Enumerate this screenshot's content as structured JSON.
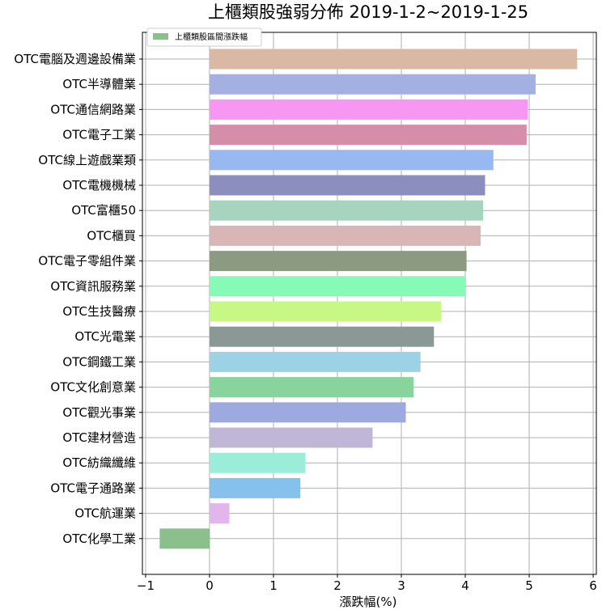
{
  "chart_data": {
    "type": "bar",
    "orientation": "horizontal",
    "title": "上櫃類股強弱分佈  2019-1-2~2019-1-25",
    "xlabel": "漲跌幅(%)",
    "ylabel": "",
    "xlim": [
      -1.05,
      6.05
    ],
    "xticks": [
      -1,
      0,
      1,
      2,
      3,
      4,
      5,
      6
    ],
    "xtick_labels": [
      "−1",
      "0",
      "1",
      "2",
      "3",
      "4",
      "5",
      "6"
    ],
    "grid": true,
    "legend_position": "upper-left",
    "series": [
      {
        "name": "上櫃類股區間漲跌幅",
        "legend_color": "#8bbf8b",
        "categories": [
          "OTC電腦及週邊設備業",
          "OTC半導體業",
          "OTC通信網路業",
          "OTC電子工業",
          "OTC線上遊戲業類",
          "OTC電機機械",
          "OTC富櫃50",
          "OTC櫃買",
          "OTC電子零組件業",
          "OTC資訊服務業",
          "OTC生技醫療",
          "OTC光電業",
          "OTC鋼鐵工業",
          "OTC文化創意業",
          "OTC觀光事業",
          "OTC建材營造",
          "OTC紡織纖維",
          "OTC電子通路業",
          "OTC航運業",
          "OTC化學工業"
        ],
        "values": [
          5.75,
          5.1,
          4.98,
          4.96,
          4.44,
          4.31,
          4.28,
          4.24,
          4.02,
          4.0,
          3.62,
          3.51,
          3.3,
          3.19,
          3.07,
          2.55,
          1.5,
          1.42,
          0.31,
          -0.78
        ],
        "colors": [
          "#d9b9a4",
          "#a4b0e2",
          "#f896f3",
          "#d58daa",
          "#97b8f0",
          "#8c8fbe",
          "#a7d4bf",
          "#d9b6b5",
          "#8d9a82",
          "#86fbb5",
          "#c7f886",
          "#8a9995",
          "#9bd2e5",
          "#89d49d",
          "#9daae0",
          "#c0b6d7",
          "#9aeed9",
          "#86c0ed",
          "#e2b6ed",
          "#8bbf8b"
        ]
      }
    ]
  }
}
